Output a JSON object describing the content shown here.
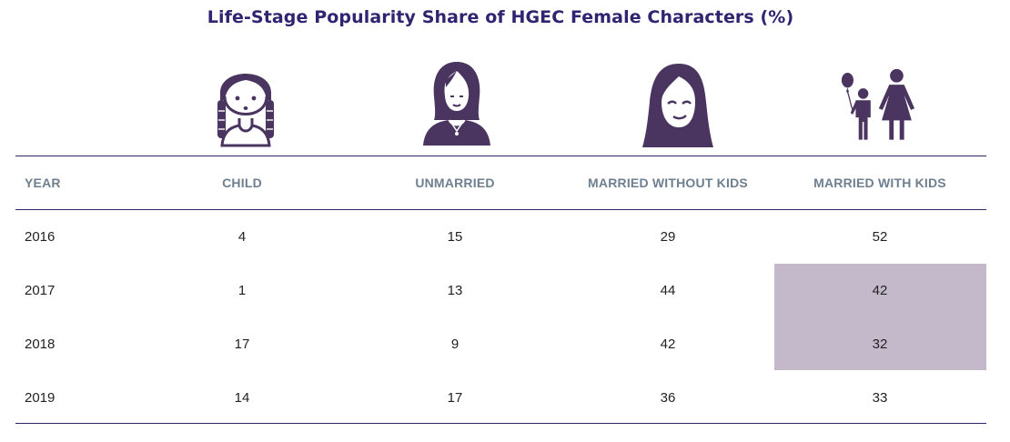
{
  "chart_data": {
    "type": "table",
    "title": "Life-Stage Popularity Share of HGEC Female Characters (%)",
    "columns": [
      "YEAR",
      "CHILD",
      "UNMARRIED",
      "MARRIED WITHOUT KIDS",
      "MARRIED WITH KIDS"
    ],
    "column_icons": [
      "child-girl-braids-icon",
      "unmarried-woman-icon",
      "married-woman-long-hair-icon",
      "mother-with-child-and-balloon-icon"
    ],
    "rows": [
      {
        "year": "2016",
        "child": "4",
        "unmarried": "15",
        "married_without_kids": "29",
        "married_with_kids": "52"
      },
      {
        "year": "2017",
        "child": "1",
        "unmarried": "13",
        "married_without_kids": "44",
        "married_with_kids": "42"
      },
      {
        "year": "2018",
        "child": "17",
        "unmarried": "9",
        "married_without_kids": "42",
        "married_with_kids": "32"
      },
      {
        "year": "2019",
        "child": "14",
        "unmarried": "17",
        "married_without_kids": "36",
        "married_with_kids": "33"
      }
    ],
    "highlighted_cells": [
      {
        "row": "2017",
        "column": "MARRIED WITH KIDS"
      },
      {
        "row": "2018",
        "column": "MARRIED WITH KIDS"
      }
    ]
  },
  "colors": {
    "title": "#2f2470",
    "header_text": "#6e7f8f",
    "rule": "#2e2666",
    "icon": "#4a3560",
    "highlight": "#c4b8cb",
    "body_text": "#222222"
  }
}
